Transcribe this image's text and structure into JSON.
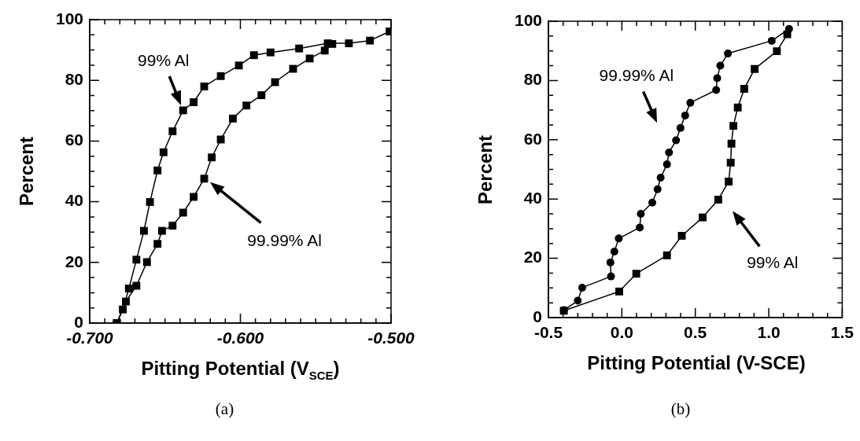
{
  "chart_data": [
    {
      "type": "line",
      "title": "(a)",
      "xlabel": "Pitting Potential (V$_{SCE}$)",
      "ylabel": "Percent",
      "grid": false,
      "line_style": "solid",
      "xlim": [
        -0.7,
        -0.5
      ],
      "ylim": [
        0,
        100
      ],
      "xticks": [
        {
          "value": -0.7,
          "label": "-0.700"
        },
        {
          "value": -0.69,
          "label": null
        },
        {
          "value": -0.68,
          "label": null
        },
        {
          "value": -0.67,
          "label": null
        },
        {
          "value": -0.66,
          "label": null
        },
        {
          "value": -0.65,
          "label": null
        },
        {
          "value": -0.64,
          "label": null
        },
        {
          "value": -0.63,
          "label": null
        },
        {
          "value": -0.62,
          "label": null
        },
        {
          "value": -0.61,
          "label": null
        },
        {
          "value": -0.6,
          "label": "-0.600"
        },
        {
          "value": -0.59,
          "label": null
        },
        {
          "value": -0.58,
          "label": null
        },
        {
          "value": -0.57,
          "label": null
        },
        {
          "value": -0.56,
          "label": null
        },
        {
          "value": -0.55,
          "label": null
        },
        {
          "value": -0.54,
          "label": null
        },
        {
          "value": -0.53,
          "label": null
        },
        {
          "value": -0.52,
          "label": null
        },
        {
          "value": -0.51,
          "label": null
        },
        {
          "value": -0.5,
          "label": "-0.500"
        }
      ],
      "yticks": [
        0,
        {
          "value": 5,
          "label": null
        },
        {
          "value": 10,
          "label": null
        },
        {
          "value": 15,
          "label": null
        },
        20,
        {
          "value": 25,
          "label": null
        },
        {
          "value": 30,
          "label": null
        },
        {
          "value": 35,
          "label": null
        },
        40,
        {
          "value": 45,
          "label": null
        },
        {
          "value": 50,
          "label": null
        },
        {
          "value": 55,
          "label": null
        },
        60,
        {
          "value": 65,
          "label": null
        },
        {
          "value": 70,
          "label": null
        },
        {
          "value": 75,
          "label": null
        },
        80,
        {
          "value": 85,
          "label": null
        },
        {
          "value": 90,
          "label": null
        },
        {
          "value": 95,
          "label": null
        },
        100
      ],
      "series": [
        {
          "name": "99% Al",
          "color": "#000000",
          "marker": "square",
          "x": [
            -0.682,
            -0.678,
            -0.674,
            -0.669,
            -0.664,
            -0.66,
            -0.655,
            -0.651,
            -0.645,
            -0.638,
            -0.631,
            -0.624,
            -0.613,
            -0.601,
            -0.591,
            -0.58,
            -0.561,
            -0.542,
            -0.528,
            -0.514,
            -0.501
          ],
          "values": [
            0,
            4.5,
            11.4,
            20.9,
            30.4,
            39.9,
            50.3,
            56.3,
            63.2,
            70.1,
            72.8,
            78,
            81.4,
            84.9,
            88.3,
            89.2,
            90.5,
            92.2,
            92.2,
            93.1,
            96.1
          ]
        },
        {
          "name": "99.99% Al",
          "color": "#000000",
          "marker": "square",
          "x": [
            -0.682,
            -0.676,
            -0.669,
            -0.662,
            -0.655,
            -0.652,
            -0.645,
            -0.638,
            -0.631,
            -0.624,
            -0.619,
            -0.613,
            -0.605,
            -0.596,
            -0.586,
            -0.577,
            -0.565,
            -0.554,
            -0.544,
            -0.539
          ],
          "values": [
            0,
            7.1,
            12.3,
            20.1,
            26.1,
            30.4,
            32.1,
            36.4,
            41.6,
            47.6,
            54.6,
            60.5,
            67.4,
            71.7,
            75.1,
            79.4,
            83.8,
            87.2,
            89.8,
            92
          ]
        }
      ]
    },
    {
      "type": "line",
      "title": "(b)",
      "xlabel": "Pitting Potential (V-SCE)",
      "ylabel": "Percent",
      "grid": false,
      "line_style": "solid",
      "xlim": [
        -0.5,
        1.5
      ],
      "ylim": [
        0,
        100
      ],
      "xticks": [
        -0.5,
        {
          "value": -0.4,
          "label": null
        },
        {
          "value": -0.3,
          "label": null
        },
        {
          "value": -0.2,
          "label": null
        },
        {
          "value": -0.1,
          "label": null
        },
        {
          "value": 0,
          "label": "0.0"
        },
        {
          "value": 0.1,
          "label": null
        },
        {
          "value": 0.2,
          "label": null
        },
        {
          "value": 0.3,
          "label": null
        },
        {
          "value": 0.4,
          "label": null
        },
        0.5,
        {
          "value": 0.6,
          "label": null
        },
        {
          "value": 0.7,
          "label": null
        },
        {
          "value": 0.8,
          "label": null
        },
        {
          "value": 0.9,
          "label": null
        },
        {
          "value": 1,
          "label": "1.0"
        },
        {
          "value": 1.1,
          "label": null
        },
        {
          "value": 1.2,
          "label": null
        },
        {
          "value": 1.3,
          "label": null
        },
        {
          "value": 1.4,
          "label": null
        },
        1.5
      ],
      "yticks": [
        0,
        {
          "value": 5,
          "label": null
        },
        {
          "value": 10,
          "label": null
        },
        {
          "value": 15,
          "label": null
        },
        20,
        {
          "value": 25,
          "label": null
        },
        {
          "value": 30,
          "label": null
        },
        {
          "value": 35,
          "label": null
        },
        40,
        {
          "value": 45,
          "label": null
        },
        {
          "value": 50,
          "label": null
        },
        {
          "value": 55,
          "label": null
        },
        60,
        {
          "value": 65,
          "label": null
        },
        {
          "value": 70,
          "label": null
        },
        {
          "value": 75,
          "label": null
        },
        80,
        {
          "value": 85,
          "label": null
        },
        {
          "value": 90,
          "label": null
        },
        {
          "value": 95,
          "label": null
        },
        100
      ],
      "series": [
        {
          "name": "99.99% Al",
          "color": "#000000",
          "marker": "circle",
          "x": [
            -0.395,
            -0.3,
            -0.27,
            -0.074,
            -0.078,
            -0.051,
            -0.021,
            0.122,
            0.129,
            0.207,
            0.243,
            0.264,
            0.307,
            0.321,
            0.369,
            0.399,
            0.431,
            0.466,
            0.642,
            0.649,
            0.67,
            0.722,
            1.02,
            1.138
          ],
          "values": [
            2.5,
            5.7,
            10.1,
            13.9,
            18.6,
            22.3,
            26.7,
            30.4,
            35,
            38.8,
            43.3,
            47.2,
            51.7,
            55.7,
            59.8,
            64,
            68.2,
            72.5,
            76.8,
            80.8,
            85,
            89.1,
            93.4,
            97.4
          ]
        },
        {
          "name": "99% Al",
          "color": "#000000",
          "marker": "square",
          "x": [
            -0.395,
            -0.018,
            0.098,
            0.307,
            0.408,
            0.55,
            0.656,
            0.727,
            0.741,
            0.746,
            0.759,
            0.789,
            0.833,
            0.904,
            1.055,
            1.126
          ],
          "values": [
            2.3,
            8.8,
            14.8,
            21,
            27.6,
            33.8,
            39.8,
            45.9,
            52.3,
            58.7,
            64.7,
            70.9,
            77.2,
            83.9,
            89.9,
            95.6
          ]
        }
      ]
    }
  ]
}
